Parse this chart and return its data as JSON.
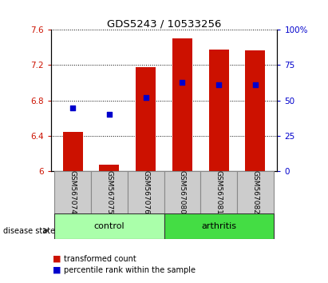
{
  "title": "GDS5243 / 10533256",
  "samples": [
    "GSM567074",
    "GSM567075",
    "GSM567076",
    "GSM567080",
    "GSM567081",
    "GSM567082"
  ],
  "groups": [
    "control",
    "control",
    "control",
    "arthritis",
    "arthritis",
    "arthritis"
  ],
  "red_values": [
    6.44,
    6.07,
    7.18,
    7.5,
    7.38,
    7.37
  ],
  "blue_values_pct": [
    45,
    40,
    52,
    63,
    61,
    61
  ],
  "ylim_left": [
    6.0,
    7.6
  ],
  "ylim_right": [
    0,
    100
  ],
  "yticks_left": [
    6.0,
    6.4,
    6.8,
    7.2,
    7.6
  ],
  "ytick_labels_left": [
    "6",
    "6.4",
    "6.8",
    "7.2",
    "7.6"
  ],
  "yticks_right": [
    0,
    25,
    50,
    75,
    100
  ],
  "ytick_labels_right": [
    "0",
    "25",
    "50",
    "75",
    "100%"
  ],
  "red_color": "#cc1100",
  "blue_color": "#0000cc",
  "control_color": "#aaffaa",
  "arthritis_color": "#44dd44",
  "tick_label_area_color": "#cccccc",
  "bar_width": 0.55,
  "legend_red_label": "transformed count",
  "legend_blue_label": "percentile rank within the sample"
}
